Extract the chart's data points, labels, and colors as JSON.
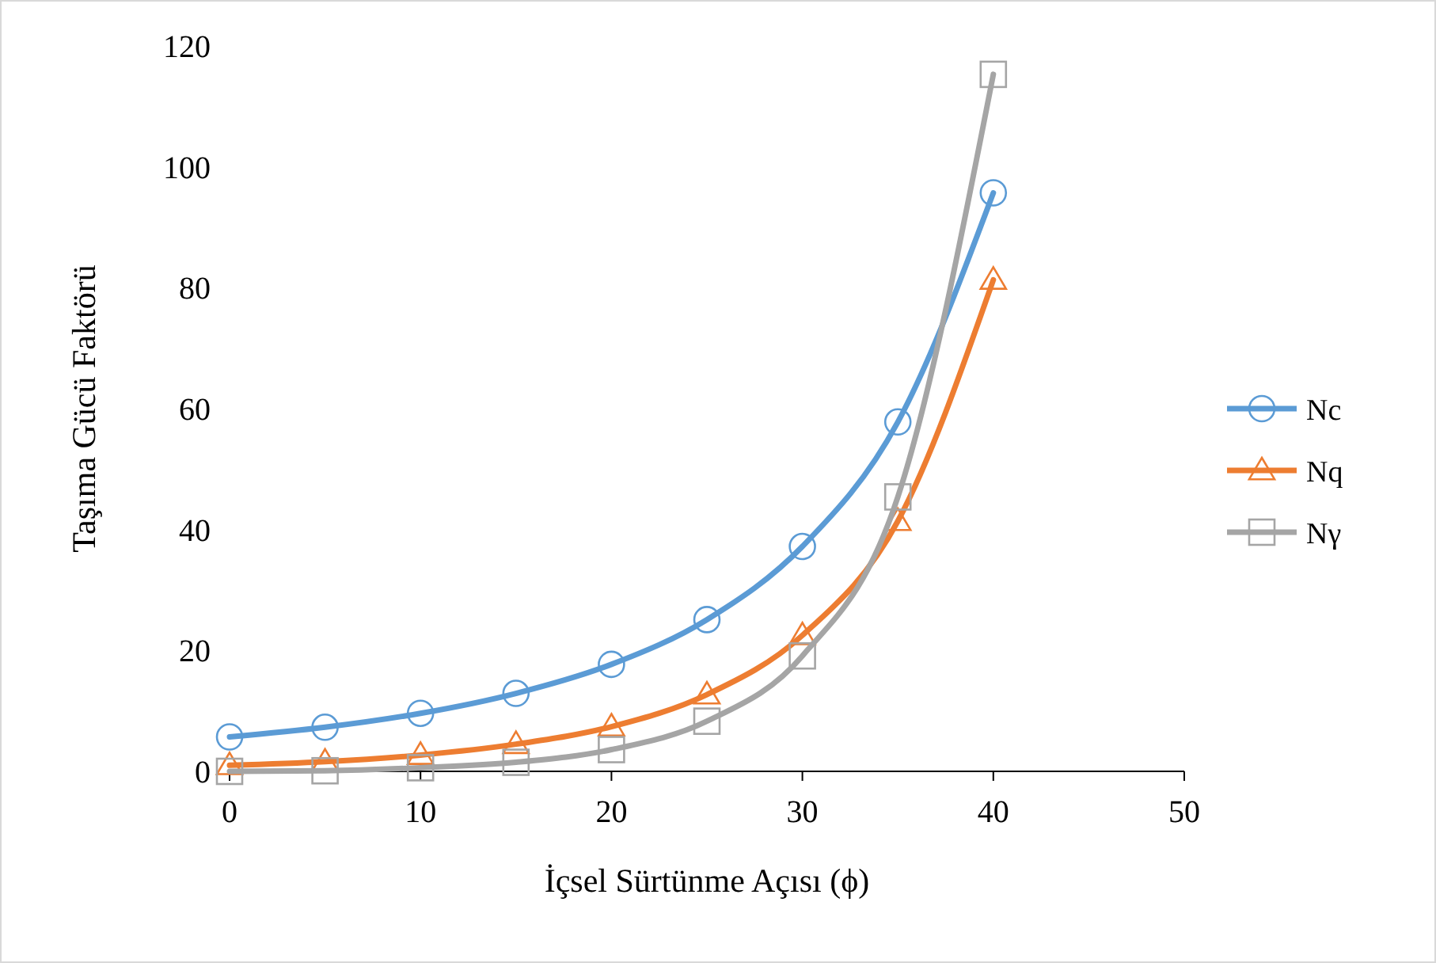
{
  "chart_data": {
    "type": "line",
    "xlabel": "İçsel Sürtünme Açısı (ϕ)",
    "ylabel": "Taşıma Gücü Faktörü",
    "x": [
      0,
      5,
      10,
      15,
      20,
      25,
      30,
      35,
      40
    ],
    "series": [
      {
        "name": "Nc",
        "color": "#5b9bd5",
        "marker": "circle",
        "values": [
          5.7,
          7.3,
          9.6,
          12.9,
          17.7,
          25.1,
          37.2,
          57.8,
          95.7
        ]
      },
      {
        "name": "Nq",
        "color": "#ed7d31",
        "marker": "triangle",
        "values": [
          1.0,
          1.6,
          2.7,
          4.5,
          7.4,
          12.7,
          22.5,
          41.4,
          81.3
        ]
      },
      {
        "name": "Nγ",
        "color": "#a5a5a5",
        "marker": "square",
        "values": [
          0.0,
          0.1,
          0.6,
          1.5,
          3.6,
          8.3,
          19.1,
          45.4,
          115.3
        ]
      }
    ],
    "xlim": [
      0,
      50
    ],
    "xticks": [
      0,
      10,
      20,
      30,
      40,
      50
    ],
    "ylim": [
      0,
      120
    ],
    "yticks": [
      0,
      20,
      40,
      60,
      80,
      100,
      120
    ],
    "grid": false,
    "legend": "right",
    "line_style": "solid"
  }
}
